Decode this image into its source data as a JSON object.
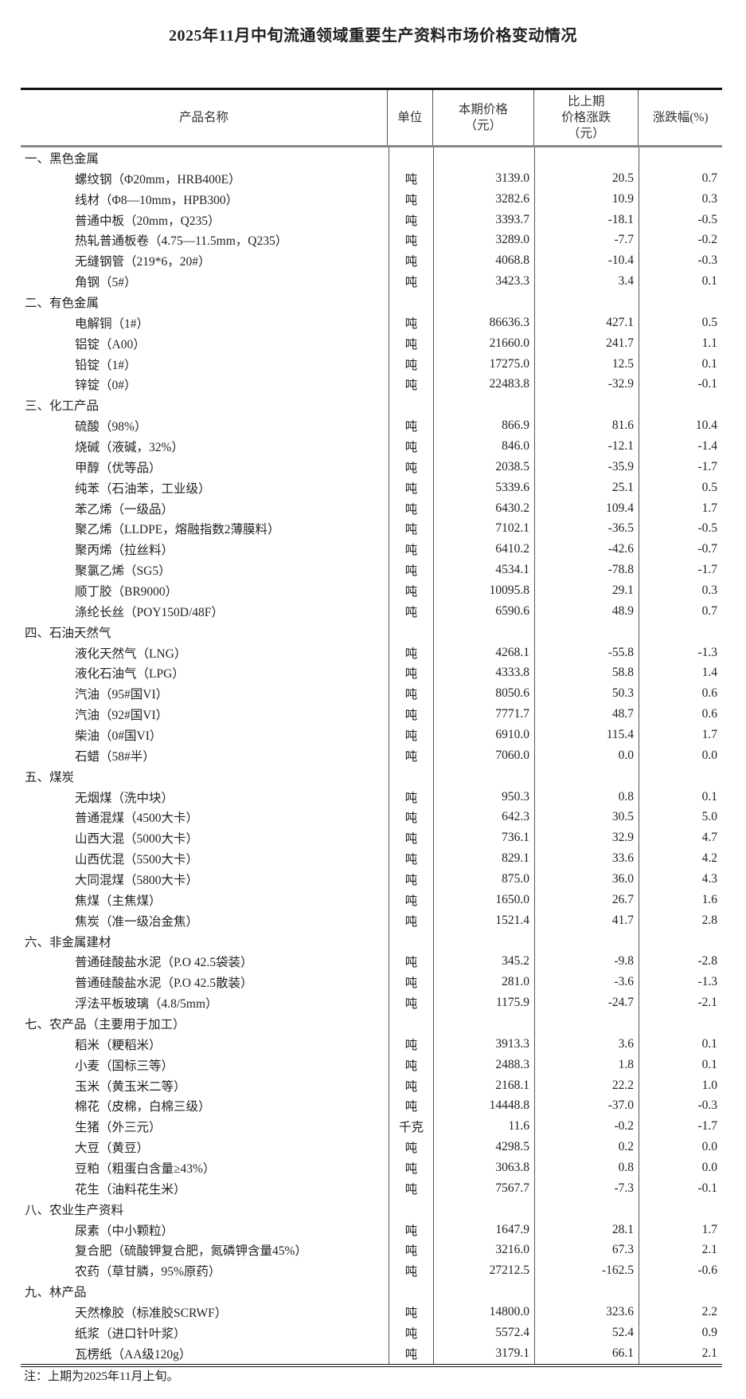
{
  "title": "2025年11月中旬流通领域重要生产资料市场价格变动情况",
  "headers": {
    "name": "产品名称",
    "unit": "单位",
    "price": "本期价格\n（元）",
    "change": "比上期\n价格涨跌\n（元）",
    "pct": "涨跌幅(%)"
  },
  "sections": [
    {
      "title": "一、黑色金属",
      "items": [
        [
          "螺纹钢（Φ20mm，HRB400E）",
          "吨",
          "3139.0",
          "20.5",
          "0.7"
        ],
        [
          "线材（Φ8—10mm，HPB300）",
          "吨",
          "3282.6",
          "10.9",
          "0.3"
        ],
        [
          "普通中板（20mm，Q235）",
          "吨",
          "3393.7",
          "-18.1",
          "-0.5"
        ],
        [
          "热轧普通板卷（4.75—11.5mm，Q235）",
          "吨",
          "3289.0",
          "-7.7",
          "-0.2"
        ],
        [
          "无缝钢管（219*6，20#）",
          "吨",
          "4068.8",
          "-10.4",
          "-0.3"
        ],
        [
          "角钢（5#）",
          "吨",
          "3423.3",
          "3.4",
          "0.1"
        ]
      ]
    },
    {
      "title": "二、有色金属",
      "items": [
        [
          "电解铜（1#）",
          "吨",
          "86636.3",
          "427.1",
          "0.5"
        ],
        [
          "铝锭（A00）",
          "吨",
          "21660.0",
          "241.7",
          "1.1"
        ],
        [
          "铅锭（1#）",
          "吨",
          "17275.0",
          "12.5",
          "0.1"
        ],
        [
          "锌锭（0#）",
          "吨",
          "22483.8",
          "-32.9",
          "-0.1"
        ]
      ]
    },
    {
      "title": "三、化工产品",
      "items": [
        [
          "硫酸（98%）",
          "吨",
          "866.9",
          "81.6",
          "10.4"
        ],
        [
          "烧碱（液碱，32%）",
          "吨",
          "846.0",
          "-12.1",
          "-1.4"
        ],
        [
          "甲醇（优等品）",
          "吨",
          "2038.5",
          "-35.9",
          "-1.7"
        ],
        [
          "纯苯（石油苯，工业级）",
          "吨",
          "5339.6",
          "25.1",
          "0.5"
        ],
        [
          "苯乙烯（一级品）",
          "吨",
          "6430.2",
          "109.4",
          "1.7"
        ],
        [
          "聚乙烯（LLDPE，熔融指数2薄膜料）",
          "吨",
          "7102.1",
          "-36.5",
          "-0.5"
        ],
        [
          "聚丙烯（拉丝料）",
          "吨",
          "6410.2",
          "-42.6",
          "-0.7"
        ],
        [
          "聚氯乙烯（SG5）",
          "吨",
          "4534.1",
          "-78.8",
          "-1.7"
        ],
        [
          "顺丁胶（BR9000）",
          "吨",
          "10095.8",
          "29.1",
          "0.3"
        ],
        [
          "涤纶长丝（POY150D/48F）",
          "吨",
          "6590.6",
          "48.9",
          "0.7"
        ]
      ]
    },
    {
      "title": "四、石油天然气",
      "items": [
        [
          "液化天然气（LNG）",
          "吨",
          "4268.1",
          "-55.8",
          "-1.3"
        ],
        [
          "液化石油气（LPG）",
          "吨",
          "4333.8",
          "58.8",
          "1.4"
        ],
        [
          "汽油（95#国VI）",
          "吨",
          "8050.6",
          "50.3",
          "0.6"
        ],
        [
          "汽油（92#国VI）",
          "吨",
          "7771.7",
          "48.7",
          "0.6"
        ],
        [
          "柴油（0#国VI）",
          "吨",
          "6910.0",
          "115.4",
          "1.7"
        ],
        [
          "石蜡（58#半）",
          "吨",
          "7060.0",
          "0.0",
          "0.0"
        ]
      ]
    },
    {
      "title": "五、煤炭",
      "items": [
        [
          "无烟煤（洗中块）",
          "吨",
          "950.3",
          "0.8",
          "0.1"
        ],
        [
          "普通混煤（4500大卡）",
          "吨",
          "642.3",
          "30.5",
          "5.0"
        ],
        [
          "山西大混（5000大卡）",
          "吨",
          "736.1",
          "32.9",
          "4.7"
        ],
        [
          "山西优混（5500大卡）",
          "吨",
          "829.1",
          "33.6",
          "4.2"
        ],
        [
          "大同混煤（5800大卡）",
          "吨",
          "875.0",
          "36.0",
          "4.3"
        ],
        [
          "焦煤（主焦煤）",
          "吨",
          "1650.0",
          "26.7",
          "1.6"
        ],
        [
          "焦炭（准一级冶金焦）",
          "吨",
          "1521.4",
          "41.7",
          "2.8"
        ]
      ]
    },
    {
      "title": "六、非金属建材",
      "items": [
        [
          "普通硅酸盐水泥（P.O 42.5袋装）",
          "吨",
          "345.2",
          "-9.8",
          "-2.8"
        ],
        [
          "普通硅酸盐水泥（P.O 42.5散装）",
          "吨",
          "281.0",
          "-3.6",
          "-1.3"
        ],
        [
          "浮法平板玻璃（4.8/5mm）",
          "吨",
          "1175.9",
          "-24.7",
          "-2.1"
        ]
      ]
    },
    {
      "title": "七、农产品（主要用于加工）",
      "items": [
        [
          "稻米（粳稻米）",
          "吨",
          "3913.3",
          "3.6",
          "0.1"
        ],
        [
          "小麦（国标三等）",
          "吨",
          "2488.3",
          "1.8",
          "0.1"
        ],
        [
          "玉米（黄玉米二等）",
          "吨",
          "2168.1",
          "22.2",
          "1.0"
        ],
        [
          "棉花（皮棉，白棉三级）",
          "吨",
          "14448.8",
          "-37.0",
          "-0.3"
        ],
        [
          "生猪（外三元）",
          "千克",
          "11.6",
          "-0.2",
          "-1.7"
        ],
        [
          "大豆（黄豆）",
          "吨",
          "4298.5",
          "0.2",
          "0.0"
        ],
        [
          "豆粕（粗蛋白含量≥43%）",
          "吨",
          "3063.8",
          "0.8",
          "0.0"
        ],
        [
          "花生（油料花生米）",
          "吨",
          "7567.7",
          "-7.3",
          "-0.1"
        ]
      ]
    },
    {
      "title": "八、农业生产资料",
      "items": [
        [
          "尿素（中小颗粒）",
          "吨",
          "1647.9",
          "28.1",
          "1.7"
        ],
        [
          "复合肥（硫酸钾复合肥，氮磷钾含量45%）",
          "吨",
          "3216.0",
          "67.3",
          "2.1"
        ],
        [
          "农药（草甘膦，95%原药）",
          "吨",
          "27212.5",
          "-162.5",
          "-0.6"
        ]
      ]
    },
    {
      "title": "九、林产品",
      "items": [
        [
          "天然橡胶（标准胶SCRWF）",
          "吨",
          "14800.0",
          "323.6",
          "2.2"
        ],
        [
          "纸浆（进口针叶浆）",
          "吨",
          "5572.4",
          "52.4",
          "0.9"
        ],
        [
          "瓦楞纸（AA级120g）",
          "吨",
          "3179.1",
          "66.1",
          "2.1"
        ]
      ]
    }
  ],
  "note": "注：上期为2025年11月上旬。"
}
